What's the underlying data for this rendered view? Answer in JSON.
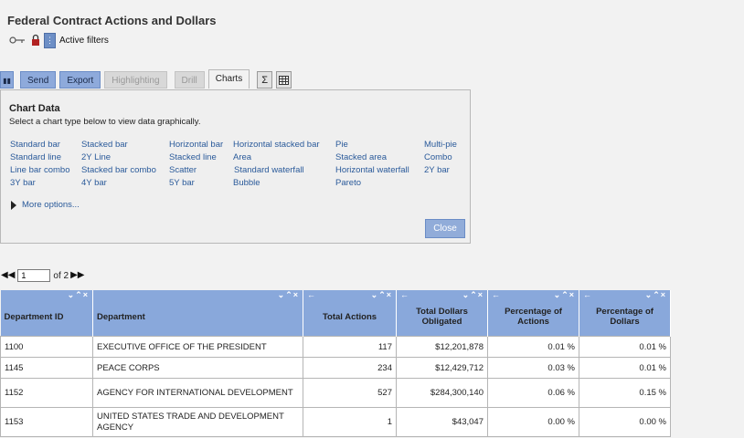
{
  "title": "Federal Contract Actions and Dollars",
  "filters": {
    "label": "Active filters"
  },
  "toolbar": {
    "send": "Send",
    "export": "Export",
    "highlighting": "Highlighting",
    "drill": "Drill",
    "charts": "Charts",
    "sum_icon": "Σ"
  },
  "chart_panel": {
    "title": "Chart Data",
    "description": "Select a chart type below to view data graphically.",
    "types": [
      "Standard bar",
      "Stacked bar",
      "Horizontal bar",
      "Horizontal stacked bar",
      "Pie",
      "Multi-pie",
      "Standard line",
      "Stacked line",
      "Area",
      "Stacked area",
      "Combo",
      "Line bar combo",
      "Stacked bar combo",
      "Scatter",
      "Standard waterfall",
      "Horizontal waterfall",
      "2Y Line",
      "2Y bar",
      "3Y bar",
      "4Y bar",
      "5Y bar",
      "Bubble",
      "Pareto"
    ],
    "more_options": "More options...",
    "close": "Close"
  },
  "pager": {
    "current_page": "1",
    "of_text": "of 2"
  },
  "table": {
    "headers": [
      "Department ID",
      "Department",
      "Total Actions",
      "Total Dollars Obligated",
      "Percentage of Actions",
      "Percentage of Dollars"
    ],
    "rows": [
      [
        "1100",
        "EXECUTIVE OFFICE OF THE PRESIDENT",
        "117",
        "$12,201,878",
        "0.01 %",
        "0.01 %"
      ],
      [
        "1145",
        "PEACE CORPS",
        "234",
        "$12,429,712",
        "0.03 %",
        "0.01 %"
      ],
      [
        "1152",
        "AGENCY FOR INTERNATIONAL DEVELOPMENT",
        "527",
        "$284,300,140",
        "0.06 %",
        "0.15 %"
      ],
      [
        "1153",
        "UNITED STATES TRADE AND DEVELOPMENT AGENCY",
        "1",
        "$43,047",
        "0.00 %",
        "0.00 %"
      ]
    ]
  }
}
